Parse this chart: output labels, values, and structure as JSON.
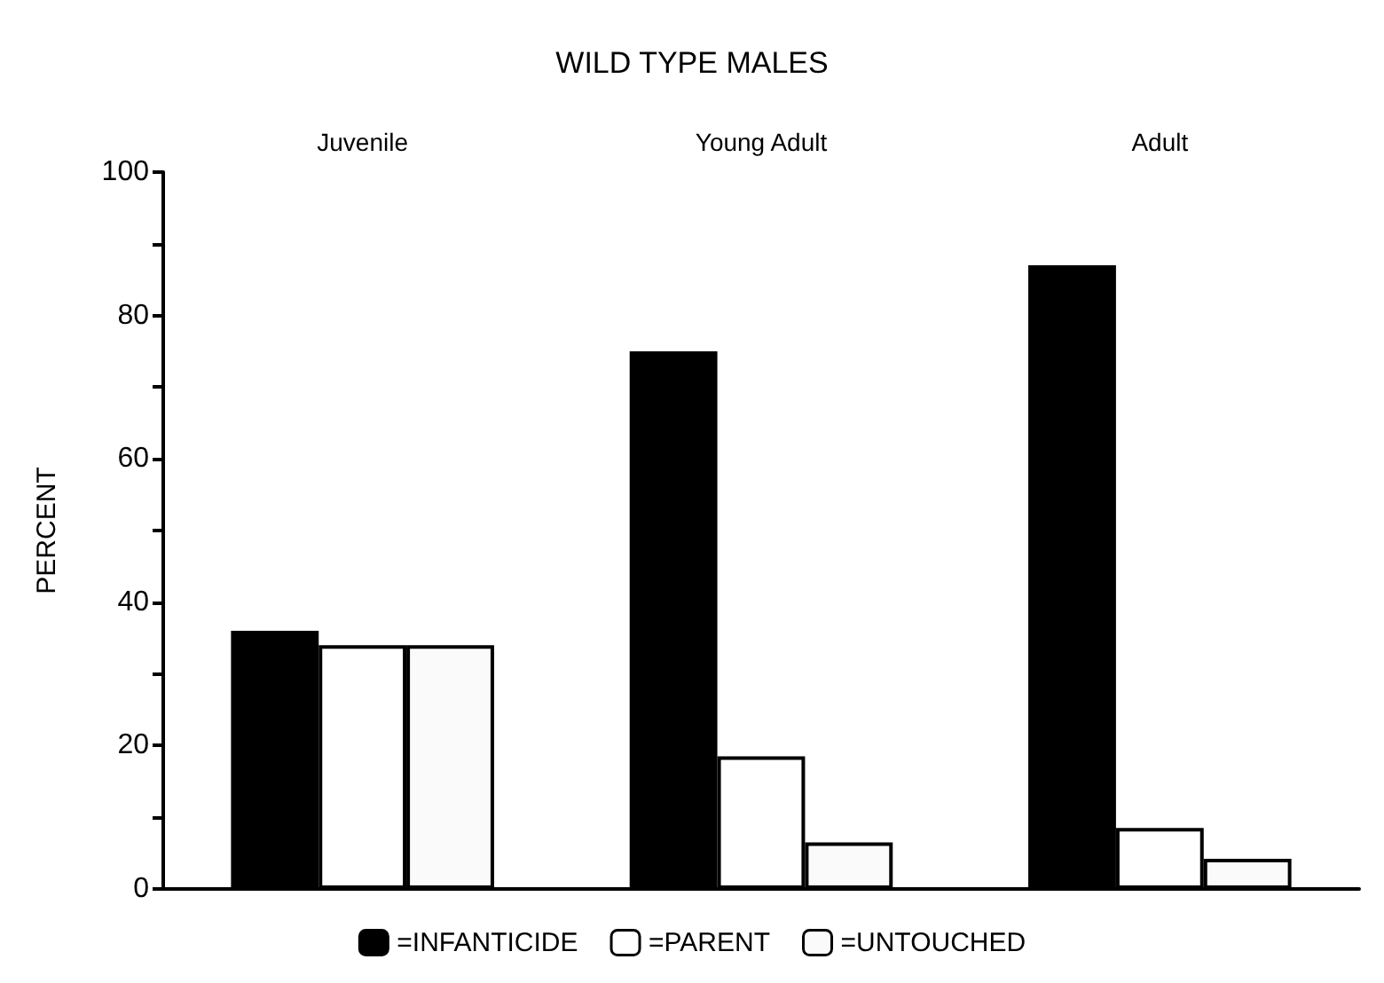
{
  "chart_data": {
    "type": "bar",
    "title": "WILD TYPE MALES",
    "ylabel": "PERCENT",
    "categories": [
      "Juvenile",
      "Young Adult",
      "Adult"
    ],
    "series": [
      {
        "name": "=INFANTICIDE",
        "color": "#000000",
        "values": [
          36,
          75,
          87
        ]
      },
      {
        "name": "=PARENT",
        "color": "#ffffff",
        "values": [
          34,
          18.5,
          8.5
        ]
      },
      {
        "name": "=UNTOUCHED",
        "color": "#fafafa",
        "values": [
          34,
          6.5,
          4.2
        ]
      }
    ],
    "ylim": [
      0,
      100
    ],
    "yticks": [
      0,
      {
        "value": 10,
        "label": null
      },
      20,
      {
        "value": 30,
        "label": null
      },
      40,
      {
        "value": 50,
        "label": null
      },
      60,
      {
        "value": 70,
        "label": null
      },
      80,
      {
        "value": 90,
        "label": null
      },
      100
    ],
    "grid": false,
    "legend": "bottom"
  }
}
